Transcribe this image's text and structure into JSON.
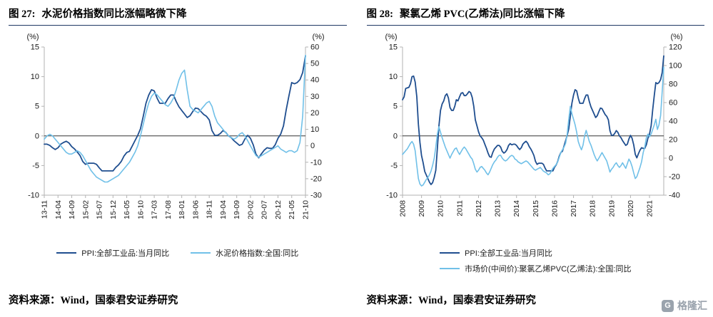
{
  "page": {
    "logo": {
      "text": "格隆汇",
      "letter": "G"
    }
  },
  "colors": {
    "ppi_line": "#1f4e8f",
    "secondary_line": "#70c0e8",
    "title_rule": "#1f3864",
    "spine": "#b3b3b3",
    "zero_line": "#333333"
  },
  "chart_data": [
    {
      "type": "line",
      "title_prefix": "图 27:",
      "title": "水泥价格指数同比涨幅略微下降",
      "source": "资料来源：Wind，国泰君安证券研究",
      "legend_stacked": false,
      "left_axis": {
        "unit": "(%)",
        "min": -10,
        "max": 15,
        "ticks": [
          15,
          10,
          5,
          0,
          -5,
          -10
        ]
      },
      "right_axis": {
        "unit": "(%)",
        "min": -30,
        "max": 60,
        "ticks": [
          60,
          50,
          40,
          30,
          20,
          10,
          0,
          -10,
          -20,
          -30
        ]
      },
      "x_tick_step": 5,
      "x_tick_labels": [
        "13-11",
        "14-04",
        "14-09",
        "15-02",
        "15-07",
        "15-12",
        "16-05",
        "16-10",
        "17-03",
        "17-08",
        "18-01",
        "18-06",
        "18-11",
        "19-04",
        "19-09",
        "20-02",
        "20-07",
        "20-12",
        "21-05",
        "21-10"
      ],
      "series": [
        {
          "name": "PPI:全部工业品:当月同比",
          "axis": "left",
          "color": "#1f4e8f",
          "width": 1.8,
          "values": [
            -1.4,
            -1.4,
            -1.6,
            -2.0,
            -2.3,
            -2.0,
            -1.4,
            -1.1,
            -0.9,
            -1.2,
            -1.8,
            -2.2,
            -2.7,
            -3.3,
            -4.3,
            -4.8,
            -4.6,
            -4.6,
            -4.6,
            -4.8,
            -5.4,
            -5.9,
            -5.9,
            -5.9,
            -5.9,
            -5.9,
            -5.3,
            -4.9,
            -4.3,
            -3.4,
            -2.8,
            -2.6,
            -1.7,
            -0.8,
            0.1,
            1.2,
            3.3,
            5.5,
            6.9,
            7.8,
            7.6,
            6.4,
            5.5,
            5.5,
            5.5,
            6.3,
            6.9,
            6.9,
            5.8,
            4.9,
            4.3,
            3.7,
            3.1,
            3.4,
            4.1,
            4.7,
            4.6,
            4.1,
            3.6,
            3.3,
            2.7,
            0.9,
            0.1,
            0.1,
            0.4,
            0.9,
            0.6,
            0.0,
            -0.3,
            -0.8,
            -1.2,
            -1.6,
            -1.4,
            -0.5,
            0.1,
            -0.4,
            -1.5,
            -3.1,
            -3.7,
            -3.0,
            -2.4,
            -2.0,
            -2.1,
            -2.1,
            -1.5,
            -0.4,
            0.3,
            1.7,
            4.4,
            6.8,
            9.0,
            8.8,
            9.0,
            9.5,
            10.7,
            13.5
          ]
        },
        {
          "name": "水泥价格指数:全国:同比",
          "axis": "right",
          "color": "#70c0e8",
          "width": 1.6,
          "values": [
            4,
            6,
            7,
            6,
            4,
            2,
            0,
            -2,
            -4,
            -5,
            -5,
            -4,
            -3,
            -4,
            -6,
            -9,
            -12,
            -15,
            -17,
            -19,
            -20,
            -21,
            -22,
            -22,
            -21,
            -20,
            -19,
            -18,
            -16,
            -14,
            -12,
            -10,
            -7,
            -4,
            0,
            6,
            13,
            20,
            26,
            30,
            32,
            31,
            29,
            27,
            25,
            24,
            26,
            29,
            34,
            40,
            44,
            46,
            34,
            24,
            22,
            21,
            20,
            22,
            24,
            26,
            27,
            24,
            18,
            14,
            12,
            10,
            8,
            6,
            5,
            4,
            5,
            7,
            8,
            6,
            3,
            0,
            -3,
            -6,
            -7,
            -6,
            -5,
            -4,
            -3,
            -2,
            -1,
            0,
            -2,
            -3,
            -4,
            -3,
            -3,
            -4,
            -3,
            2,
            18,
            55
          ]
        }
      ]
    },
    {
      "type": "line",
      "title_prefix": "图 28:",
      "title": "聚氯乙烯 PVC(乙烯法)同比涨幅下降",
      "source": "资料来源：Wind，国泰君安证券研究",
      "legend_stacked": true,
      "left_axis": {
        "unit": "(%)",
        "min": -10,
        "max": 15,
        "ticks": [
          15,
          10,
          5,
          0,
          -5,
          -10
        ]
      },
      "right_axis": {
        "unit": "(%)",
        "min": -40,
        "max": 120,
        "ticks": [
          120,
          100,
          80,
          60,
          40,
          20,
          0,
          -20,
          -40
        ]
      },
      "x_tick_step": 12,
      "x_tick_labels": [
        "2008",
        "2009",
        "2010",
        "2011",
        "2012",
        "2013",
        "2014",
        "2015",
        "2016",
        "2017",
        "2018",
        "2019",
        "2020",
        "2021"
      ],
      "series": [
        {
          "name": "PPI:全部工业品:当月同比",
          "axis": "left",
          "color": "#1f4e8f",
          "width": 1.8,
          "values": [
            6.1,
            6.6,
            8.0,
            8.1,
            8.2,
            8.8,
            10.0,
            10.1,
            9.1,
            6.6,
            2.0,
            -1.1,
            -3.3,
            -4.5,
            -6.0,
            -6.6,
            -7.2,
            -7.8,
            -8.2,
            -7.9,
            -7.0,
            -5.8,
            -2.1,
            1.7,
            4.3,
            5.4,
            5.9,
            6.8,
            7.1,
            6.4,
            4.8,
            4.3,
            4.3,
            5.0,
            6.1,
            5.9,
            6.6,
            7.2,
            7.3,
            6.8,
            6.8,
            7.1,
            7.5,
            7.3,
            6.5,
            5.0,
            2.7,
            1.7,
            0.7,
            0.0,
            -0.3,
            -0.7,
            -1.4,
            -2.1,
            -2.9,
            -3.5,
            -3.6,
            -2.8,
            -2.2,
            -1.9,
            -1.6,
            -1.6,
            -1.9,
            -2.6,
            -2.9,
            -2.7,
            -2.3,
            -1.6,
            -1.3,
            -1.5,
            -1.4,
            -1.4,
            -1.6,
            -2.0,
            -2.3,
            -2.0,
            -1.4,
            -1.1,
            -0.9,
            -1.2,
            -1.8,
            -2.2,
            -2.7,
            -3.3,
            -4.3,
            -4.8,
            -4.6,
            -4.6,
            -4.6,
            -4.8,
            -5.4,
            -5.9,
            -5.9,
            -5.9,
            -5.9,
            -5.9,
            -5.3,
            -4.9,
            -4.3,
            -3.4,
            -2.8,
            -2.6,
            -1.7,
            -0.8,
            0.1,
            1.2,
            3.3,
            5.5,
            6.9,
            7.8,
            7.6,
            6.4,
            5.5,
            5.5,
            5.5,
            6.3,
            6.9,
            6.9,
            5.8,
            4.9,
            4.3,
            3.7,
            3.1,
            3.4,
            4.1,
            4.7,
            4.6,
            4.1,
            3.6,
            3.3,
            2.7,
            0.9,
            0.1,
            0.1,
            0.4,
            0.9,
            0.6,
            0.0,
            -0.3,
            -0.8,
            -1.2,
            -1.6,
            -1.4,
            -0.5,
            0.1,
            -0.4,
            -1.5,
            -3.1,
            -3.7,
            -3.0,
            -2.4,
            -2.0,
            -2.1,
            -2.1,
            -1.5,
            -0.4,
            0.3,
            1.7,
            4.4,
            6.8,
            9.0,
            8.8,
            9.0,
            9.5,
            10.7,
            13.5
          ]
        },
        {
          "name": "市场价(中间价):聚氯乙烯PVC(乙烯法):全国:同比",
          "axis": "right",
          "color": "#70c0e8",
          "width": 1.6,
          "values": [
            4,
            6,
            8,
            10,
            13,
            16,
            18,
            15,
            8,
            -8,
            -22,
            -28,
            -30,
            -29,
            -26,
            -23,
            -21,
            -18,
            -14,
            -8,
            0,
            12,
            26,
            34,
            28,
            22,
            17,
            12,
            8,
            4,
            0,
            4,
            7,
            10,
            11,
            7,
            4,
            7,
            10,
            12,
            10,
            7,
            4,
            1,
            -1,
            -6,
            -12,
            -15,
            -13,
            -10,
            -9,
            -11,
            -13,
            -16,
            -18,
            -15,
            -11,
            -7,
            -4,
            -2,
            1,
            3,
            3,
            0,
            -2,
            -3,
            -2,
            0,
            2,
            3,
            2,
            -1,
            -2,
            -4,
            -5,
            -6,
            -5,
            -4,
            -3,
            -4,
            -6,
            -8,
            -10,
            -12,
            -13,
            -12,
            -11,
            -10,
            -12,
            -14,
            -15,
            -16,
            -18,
            -17,
            -14,
            -11,
            -9,
            -7,
            -4,
            1,
            6,
            9,
            12,
            16,
            26,
            42,
            56,
            48,
            42,
            36,
            28,
            18,
            13,
            9,
            14,
            24,
            30,
            24,
            18,
            14,
            9,
            4,
            0,
            -3,
            0,
            3,
            6,
            3,
            0,
            -3,
            -9,
            -15,
            -12,
            -10,
            -7,
            -5,
            -8,
            -10,
            -8,
            -5,
            -8,
            -11,
            -6,
            -1,
            -4,
            -9,
            -16,
            -22,
            -20,
            -15,
            -10,
            -4,
            6,
            12,
            22,
            26,
            23,
            26,
            31,
            36,
            42,
            31,
            36,
            46,
            72,
            98
          ]
        }
      ]
    }
  ]
}
